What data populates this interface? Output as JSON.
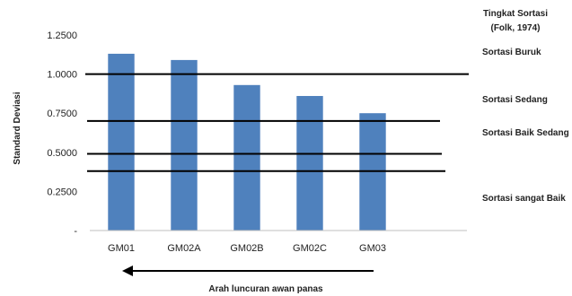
{
  "chart_data": {
    "type": "bar",
    "categories": [
      "GM01",
      "GM02A",
      "GM02B",
      "GM02C",
      "GM03"
    ],
    "values": [
      1.13,
      1.09,
      0.93,
      0.86,
      0.75
    ],
    "ylabel": "Standard Deviasi",
    "xlabel": "Arah luncuran awan panas",
    "ylim": [
      0,
      1.25
    ],
    "yticks": [
      {
        "value": 0,
        "label": "-"
      },
      {
        "value": 0.25,
        "label": "0.2500"
      },
      {
        "value": 0.5,
        "label": "0.5000"
      },
      {
        "value": 0.75,
        "label": "0.7500"
      },
      {
        "value": 1.0,
        "label": "1.0000"
      },
      {
        "value": 1.25,
        "label": "1.2500"
      }
    ],
    "bar_color": "#4f81bd",
    "threshold_lines": [
      {
        "value": 1.0
      },
      {
        "value": 0.7
      },
      {
        "value": 0.49
      },
      {
        "value": 0.38
      }
    ],
    "classification": {
      "title_line1": "Tingkat Sortasi",
      "title_line2": "(Folk, 1974)",
      "classes": [
        {
          "label": "Sortasi Buruk"
        },
        {
          "label": "Sortasi Sedang"
        },
        {
          "label": "Sortasi  Baik Sedang"
        },
        {
          "label": "Sortasi sangat Baik"
        }
      ]
    },
    "grid": false,
    "legend": "right"
  }
}
